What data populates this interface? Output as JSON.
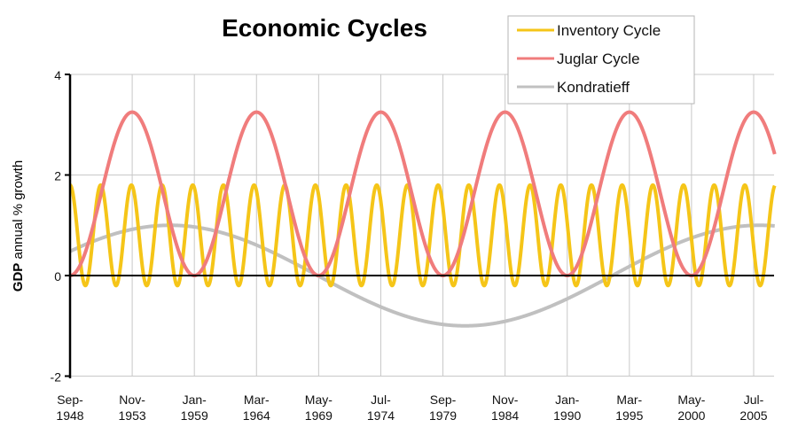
{
  "chart_data": {
    "type": "line",
    "title": "Economic Cycles",
    "xlabel": "",
    "ylabel_bold": "GDP",
    "ylabel_rest": " annual % growth",
    "ylim": [
      -2,
      4
    ],
    "yticks": [
      -2,
      0,
      2,
      4
    ],
    "x_unit": "months since Sep-1948",
    "xlim_months": [
      0,
      703
    ],
    "xticks": [
      {
        "month": 0,
        "line1": "Sep-",
        "line2": "1948"
      },
      {
        "month": 62,
        "line1": "Nov-",
        "line2": "1953"
      },
      {
        "month": 124,
        "line1": "Jan-",
        "line2": "1959"
      },
      {
        "month": 186,
        "line1": "Mar-",
        "line2": "1964"
      },
      {
        "month": 248,
        "line1": "May-",
        "line2": "1969"
      },
      {
        "month": 310,
        "line1": "Jul-",
        "line2": "1974"
      },
      {
        "month": 372,
        "line1": "Sep-",
        "line2": "1979"
      },
      {
        "month": 434,
        "line1": "Nov-",
        "line2": "1984"
      },
      {
        "month": 496,
        "line1": "Jan-",
        "line2": "1990"
      },
      {
        "month": 558,
        "line1": "Mar-",
        "line2": "1995"
      },
      {
        "month": 620,
        "line1": "May-",
        "line2": "2000"
      },
      {
        "month": 682,
        "line1": "Jul-",
        "line2": "2005"
      }
    ],
    "grid": true,
    "legend_position": "top-right",
    "series": [
      {
        "name": "Inventory Cycle",
        "color": "#F5C518",
        "model": "sine",
        "mean": 0.8,
        "amplitude": 1.0,
        "period_months": 30.6,
        "peak_month": 0,
        "min": -0.2,
        "max": 1.8
      },
      {
        "name": "Juglar Cycle",
        "color": "#F07C7C",
        "model": "sine",
        "mean": 1.625,
        "amplitude": 1.625,
        "period_months": 124,
        "peak_month": 62,
        "min": 0,
        "max": 3.25
      },
      {
        "name": "Kondratieff",
        "color": "#C0C0C0",
        "model": "sine",
        "mean": 0.0,
        "amplitude": 1.0,
        "period_months": 588,
        "peak_month": 100,
        "min": -1.0,
        "max": 1.0
      }
    ]
  }
}
